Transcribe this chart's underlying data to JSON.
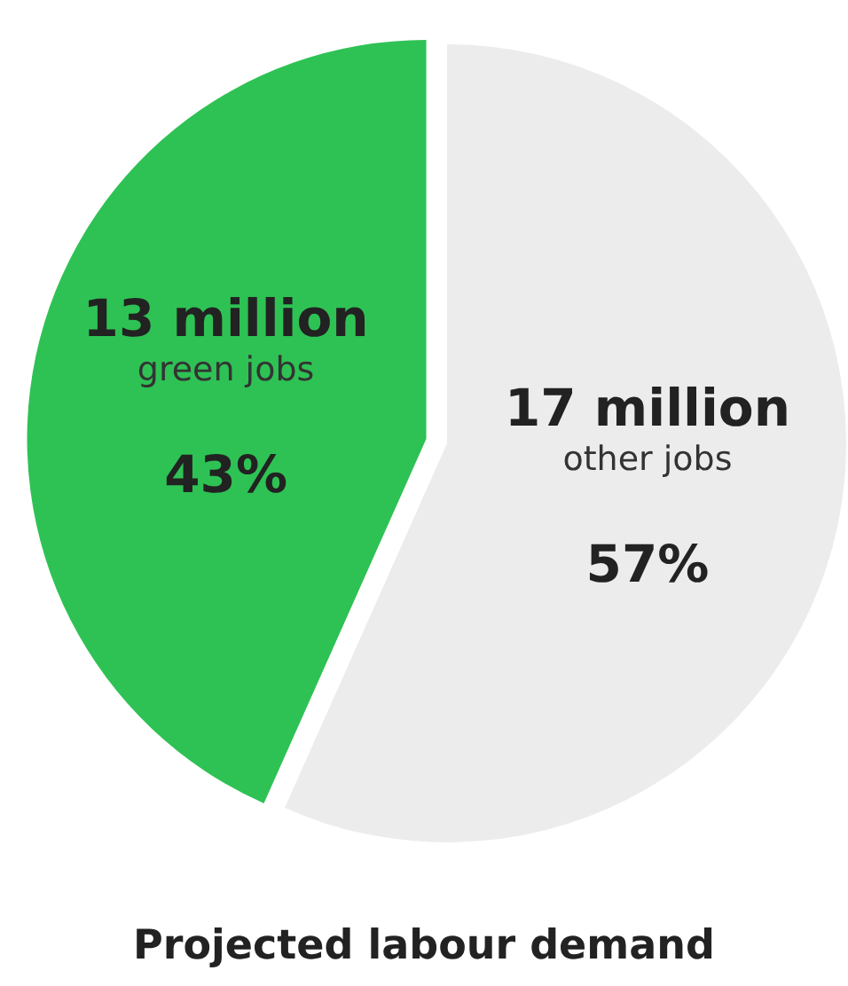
{
  "chart_data": {
    "type": "pie",
    "title": "Projected labour demand",
    "categories": [
      "green jobs",
      "other jobs"
    ],
    "values": [
      13,
      17
    ],
    "colors": [
      "#2ec254",
      "#ececec"
    ],
    "value_labels": [
      "13 million",
      "17 million"
    ],
    "annotations": [
      "43%",
      "57%"
    ]
  }
}
